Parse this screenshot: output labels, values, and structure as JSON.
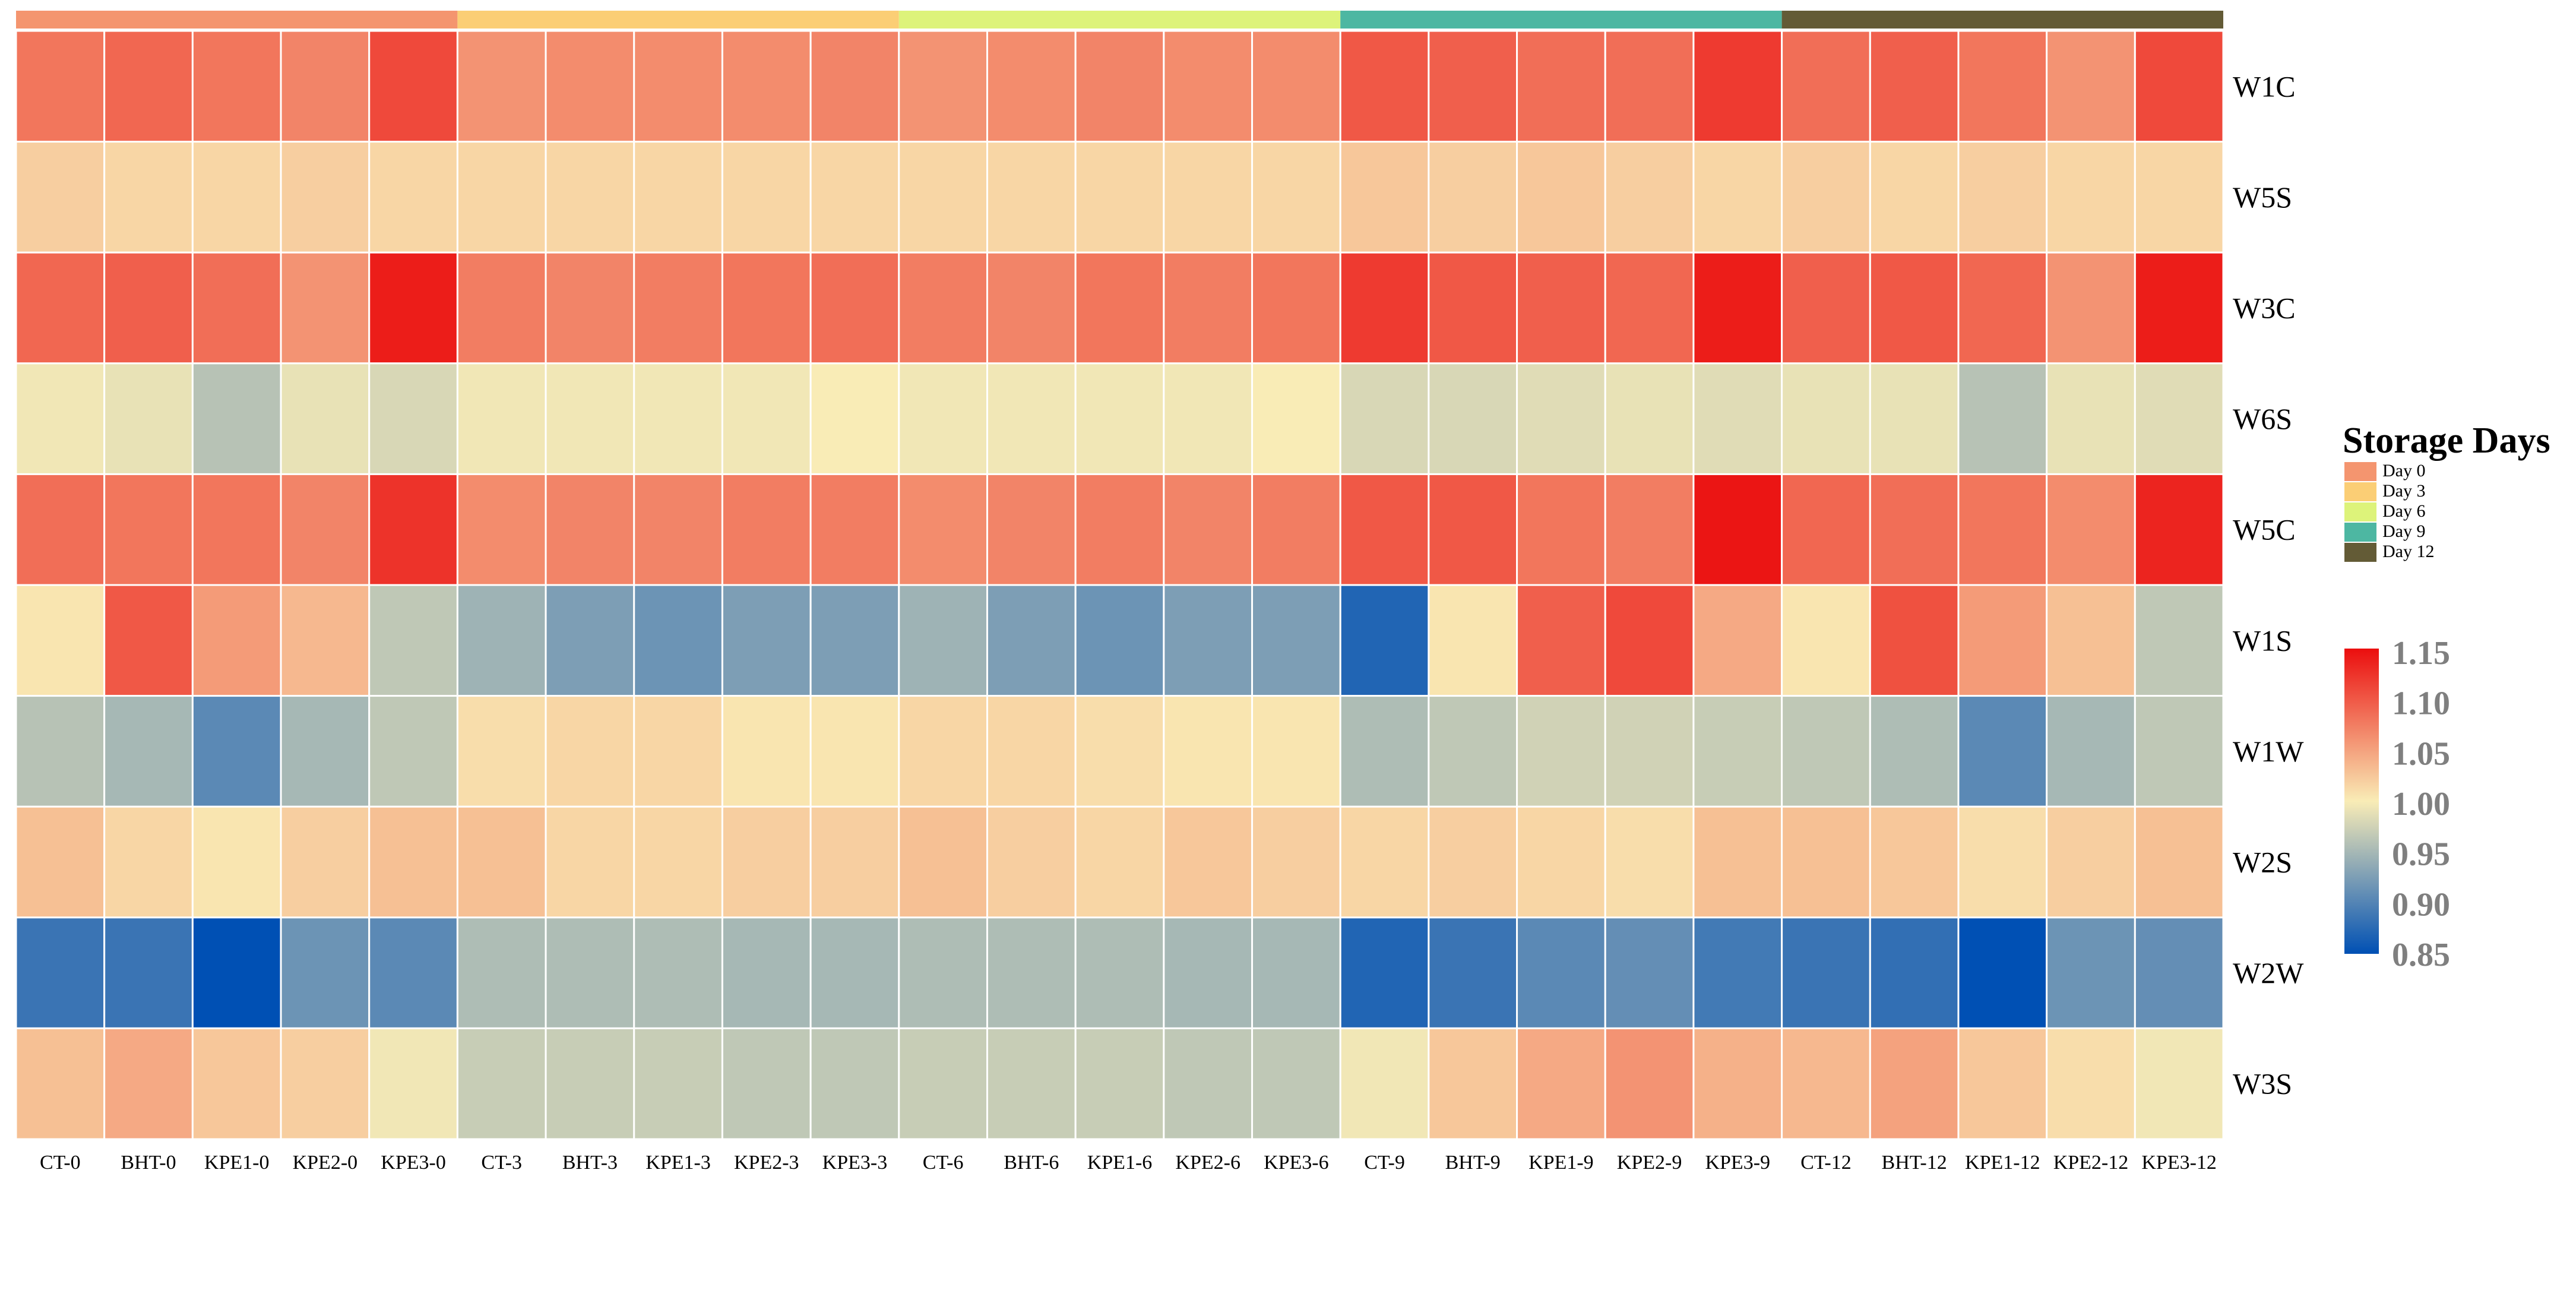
{
  "chart_data": {
    "type": "heatmap",
    "columns": [
      "CT-0",
      "BHT-0",
      "KPE1-0",
      "KPE2-0",
      "KPE3-0",
      "CT-3",
      "BHT-3",
      "KPE1-3",
      "KPE2-3",
      "KPE3-3",
      "CT-6",
      "BHT-6",
      "KPE1-6",
      "KPE2-6",
      "KPE3-6",
      "CT-9",
      "BHT-9",
      "KPE1-9",
      "KPE2-9",
      "KPE3-9",
      "CT-12",
      "BHT-12",
      "KPE1-12",
      "KPE2-12",
      "KPE3-12"
    ],
    "rows": [
      "W1C",
      "W5S",
      "W3C",
      "W6S",
      "W5C",
      "W1S",
      "W1W",
      "W2S",
      "W2W",
      "W3S"
    ],
    "column_groups": [
      {
        "label": "Day 0",
        "color": "#F4956F",
        "columns": 5
      },
      {
        "label": "Day 3",
        "color": "#FBCE75",
        "columns": 5
      },
      {
        "label": "Day 6",
        "color": "#DDF37A",
        "columns": 5
      },
      {
        "label": "Day 9",
        "color": "#4DB7A2",
        "columns": 5
      },
      {
        "label": "Day 12",
        "color": "#635B36",
        "columns": 5
      }
    ],
    "values": [
      [
        1.08,
        1.09,
        1.08,
        1.07,
        1.11,
        1.06,
        1.065,
        1.065,
        1.065,
        1.07,
        1.06,
        1.065,
        1.07,
        1.065,
        1.065,
        1.1,
        1.095,
        1.085,
        1.085,
        1.12,
        1.085,
        1.095,
        1.08,
        1.06,
        1.11
      ],
      [
        1.02,
        1.015,
        1.015,
        1.02,
        1.015,
        1.015,
        1.015,
        1.015,
        1.015,
        1.015,
        1.015,
        1.015,
        1.015,
        1.015,
        1.015,
        1.025,
        1.02,
        1.025,
        1.02,
        1.015,
        1.02,
        1.015,
        1.02,
        1.015,
        1.015
      ],
      [
        1.09,
        1.095,
        1.085,
        1.06,
        1.14,
        1.075,
        1.07,
        1.075,
        1.08,
        1.085,
        1.075,
        1.07,
        1.08,
        1.075,
        1.08,
        1.12,
        1.1,
        1.095,
        1.09,
        1.14,
        1.095,
        1.1,
        1.09,
        1.06,
        1.14
      ],
      [
        0.995,
        0.99,
        0.96,
        0.99,
        0.98,
        0.995,
        0.995,
        0.995,
        0.995,
        1.0,
        0.995,
        0.995,
        0.995,
        0.995,
        1.0,
        0.98,
        0.98,
        0.985,
        0.99,
        0.985,
        0.99,
        0.99,
        0.96,
        0.99,
        0.985
      ],
      [
        1.085,
        1.08,
        1.08,
        1.07,
        1.125,
        1.065,
        1.07,
        1.07,
        1.075,
        1.075,
        1.065,
        1.07,
        1.075,
        1.07,
        1.075,
        1.1,
        1.1,
        1.08,
        1.075,
        1.145,
        1.09,
        1.085,
        1.08,
        1.065,
        1.135
      ],
      [
        1.005,
        1.1,
        1.055,
        1.035,
        0.965,
        0.945,
        0.925,
        0.915,
        0.925,
        0.925,
        0.945,
        0.925,
        0.915,
        0.925,
        0.925,
        0.87,
        1.005,
        1.095,
        1.11,
        1.045,
        1.005,
        1.105,
        1.055,
        1.03,
        0.965
      ],
      [
        0.96,
        0.95,
        0.905,
        0.95,
        0.965,
        1.01,
        1.015,
        1.015,
        1.005,
        1.005,
        1.015,
        1.015,
        1.01,
        1.005,
        1.005,
        0.955,
        0.965,
        0.975,
        0.975,
        0.97,
        0.965,
        0.955,
        0.905,
        0.95,
        0.965
      ],
      [
        1.03,
        1.015,
        1.005,
        1.02,
        1.03,
        1.03,
        1.015,
        1.015,
        1.02,
        1.02,
        1.03,
        1.02,
        1.015,
        1.025,
        1.02,
        1.015,
        1.02,
        1.015,
        1.01,
        1.03,
        1.03,
        1.025,
        1.01,
        1.02,
        1.03
      ],
      [
        0.885,
        0.885,
        0.85,
        0.915,
        0.905,
        0.955,
        0.955,
        0.955,
        0.95,
        0.95,
        0.955,
        0.955,
        0.955,
        0.95,
        0.95,
        0.87,
        0.885,
        0.905,
        0.91,
        0.89,
        0.885,
        0.88,
        0.85,
        0.915,
        0.91
      ],
      [
        1.03,
        1.045,
        1.025,
        1.02,
        0.995,
        0.97,
        0.97,
        0.97,
        0.965,
        0.965,
        0.97,
        0.97,
        0.97,
        0.965,
        0.965,
        0.995,
        1.025,
        1.045,
        1.06,
        1.04,
        1.035,
        1.05,
        1.025,
        1.01,
        0.995
      ]
    ],
    "legend_title": "Storage Days",
    "colorbar": {
      "range": [
        0.85,
        1.15
      ],
      "ticks": [
        "1.15",
        "1.10",
        "1.05",
        "1.00",
        "0.95",
        "0.90",
        "0.85"
      ],
      "colors": [
        "#0050B4",
        "#F9ECB6",
        "#EB0E0E"
      ]
    }
  }
}
